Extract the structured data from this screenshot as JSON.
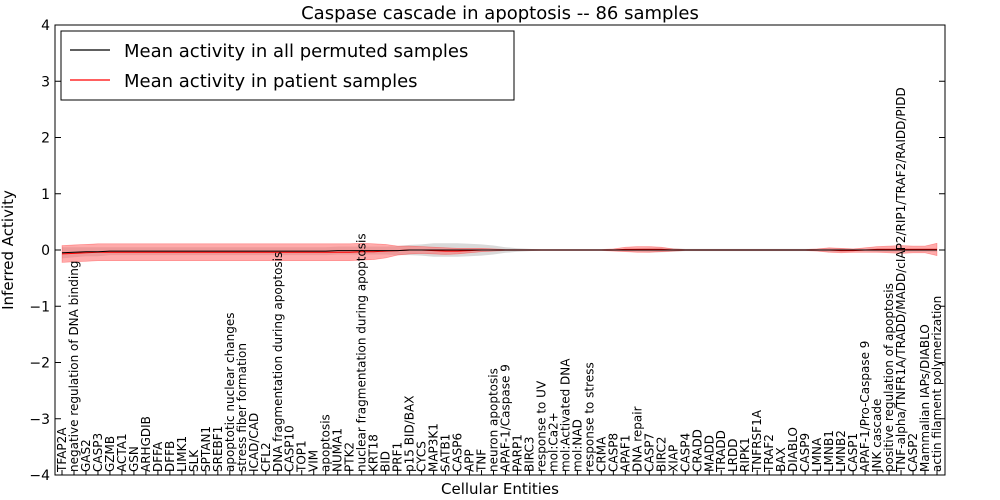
{
  "chart_data": {
    "type": "line",
    "title": "Caspase cascade in apoptosis -- 86 samples",
    "xlabel": "Cellular Entities",
    "ylabel": "Inferred Activity",
    "ylim": [
      -4,
      4
    ],
    "yticks": [
      -4,
      -3,
      -2,
      -1,
      0,
      1,
      2,
      3,
      4
    ],
    "legend_position": "top-left",
    "colors": {
      "permuted": "#000000",
      "patient": "#ff0000",
      "patient_band": "#ff6666",
      "permuted_band": "#bfbfbf"
    },
    "categories": [
      "TFAP2A",
      "negative regulation of DNA binding",
      "GAS2",
      "CASP3",
      "GZMB",
      "ACTA1",
      "GSN",
      "ARHGDIB",
      "DFFA",
      "DFFB",
      "LIMK1",
      "SLK",
      "SPTAN1",
      "SREBF1",
      "apoptotic nuclear changes",
      "stress fiber formation",
      "ICAD/CAD",
      "CFL2",
      "DNA fragmentation during apoptosis",
      "CASP10",
      "TOP1",
      "VIM",
      "apoptosis",
      "NUMA1",
      "PTK2",
      "nuclear fragmentation during apoptosis",
      "KRT18",
      "BID",
      "PRF1",
      "p15 BID/BAX",
      "CYCS",
      "MAP3K1",
      "SATB1",
      "CASP6",
      "APP",
      "TNF",
      "neuron apoptosis",
      "APAF-1/Caspase 9",
      "PARP1",
      "BIRC3",
      "response to UV",
      "mol:Ca2+",
      "mol:Activated DNA",
      "mol:NAD",
      "response to stress",
      "CRMA",
      "CASP8",
      "APAF1",
      "DNA repair",
      "CASP7",
      "BIRC2",
      "XIAP",
      "CASP4",
      "CRADD",
      "MADD",
      "TRADD",
      "LRDD",
      "RIPK1",
      "TNFRSF1A",
      "TRAF2",
      "BAX",
      "DIABLO",
      "CASP9",
      "LMNA",
      "LMNB1",
      "LMNB2",
      "CASP1",
      "APAF-1/Pro-Caspase 9",
      "JNK cascade",
      "positive regulation of apoptosis",
      "TNF-alpha/TNFR1A/TRADD/MADD/cIAP2/RIP1/TRAF2/RAIDD/PIDD",
      "CASP2",
      "Mammalian IAPs/DIABLO",
      "actin filament polymerization"
    ],
    "series": [
      {
        "name": "Mean activity in all permuted samples",
        "values": [
          -0.05,
          -0.04,
          -0.03,
          -0.03,
          -0.02,
          -0.02,
          -0.02,
          -0.02,
          -0.02,
          -0.02,
          -0.02,
          -0.02,
          -0.02,
          -0.02,
          -0.02,
          -0.02,
          -0.02,
          -0.02,
          -0.02,
          -0.02,
          -0.02,
          -0.02,
          -0.02,
          -0.01,
          -0.01,
          -0.01,
          -0.01,
          -0.01,
          -0.01,
          0.0,
          0.0,
          0.0,
          0.0,
          0.0,
          0.0,
          0.0,
          0.0,
          0.0,
          0.0,
          0.0,
          0.0,
          0.0,
          0.0,
          0.0,
          0.0,
          0.0,
          0.0,
          0.0,
          0.0,
          0.0,
          0.0,
          0.0,
          0.0,
          0.0,
          0.0,
          0.0,
          0.0,
          0.0,
          0.0,
          0.0,
          0.0,
          0.0,
          0.0,
          0.0,
          0.0,
          0.0,
          0.0,
          0.0,
          0.0,
          0.0,
          0.0,
          0.0,
          0.0,
          0.0
        ],
        "band": [
          0.1,
          0.09,
          0.08,
          0.08,
          0.07,
          0.07,
          0.07,
          0.07,
          0.07,
          0.07,
          0.07,
          0.07,
          0.07,
          0.07,
          0.07,
          0.07,
          0.07,
          0.07,
          0.07,
          0.07,
          0.07,
          0.07,
          0.07,
          0.07,
          0.07,
          0.07,
          0.07,
          0.07,
          0.08,
          0.09,
          0.1,
          0.12,
          0.12,
          0.12,
          0.11,
          0.1,
          0.08,
          0.05,
          0.03,
          0.02,
          0.01,
          0.01,
          0.01,
          0.01,
          0.01,
          0.01,
          0.01,
          0.02,
          0.03,
          0.04,
          0.04,
          0.03,
          0.02,
          0.02,
          0.02,
          0.02,
          0.02,
          0.02,
          0.02,
          0.02,
          0.02,
          0.02,
          0.02,
          0.02,
          0.03,
          0.03,
          0.02,
          0.02,
          0.03,
          0.03,
          0.03,
          0.03,
          0.03,
          0.03
        ]
      },
      {
        "name": "Mean activity in patient samples",
        "values": [
          -0.07,
          -0.06,
          -0.05,
          -0.04,
          -0.04,
          -0.04,
          -0.04,
          -0.04,
          -0.04,
          -0.04,
          -0.04,
          -0.04,
          -0.04,
          -0.04,
          -0.04,
          -0.04,
          -0.04,
          -0.04,
          -0.04,
          -0.04,
          -0.04,
          -0.04,
          -0.04,
          -0.04,
          -0.04,
          -0.03,
          -0.03,
          -0.02,
          -0.01,
          0.0,
          0.0,
          -0.01,
          -0.02,
          -0.02,
          -0.01,
          0.0,
          0.0,
          0.0,
          0.0,
          0.0,
          0.0,
          0.0,
          0.0,
          0.0,
          0.0,
          0.0,
          0.0,
          0.01,
          0.01,
          0.01,
          0.01,
          0.0,
          0.0,
          0.0,
          0.0,
          0.0,
          0.0,
          0.0,
          0.0,
          0.0,
          0.0,
          0.0,
          0.0,
          0.0,
          0.0,
          -0.01,
          -0.01,
          0.0,
          0.01,
          0.01,
          0.01,
          0.01,
          0.01,
          0.01
        ],
        "band": [
          0.15,
          0.15,
          0.15,
          0.15,
          0.15,
          0.15,
          0.15,
          0.15,
          0.15,
          0.15,
          0.15,
          0.15,
          0.15,
          0.15,
          0.15,
          0.15,
          0.15,
          0.15,
          0.15,
          0.15,
          0.15,
          0.15,
          0.15,
          0.15,
          0.15,
          0.15,
          0.14,
          0.12,
          0.08,
          0.07,
          0.06,
          0.06,
          0.06,
          0.05,
          0.04,
          0.03,
          0.02,
          0.01,
          0.01,
          0.01,
          0.01,
          0.01,
          0.01,
          0.01,
          0.01,
          0.01,
          0.02,
          0.04,
          0.05,
          0.05,
          0.04,
          0.02,
          0.01,
          0.01,
          0.01,
          0.01,
          0.01,
          0.01,
          0.01,
          0.01,
          0.01,
          0.01,
          0.01,
          0.02,
          0.04,
          0.04,
          0.03,
          0.04,
          0.05,
          0.06,
          0.07,
          0.06,
          0.06,
          0.11
        ]
      }
    ]
  }
}
